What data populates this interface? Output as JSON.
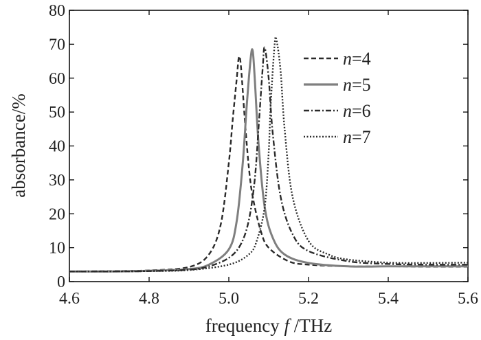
{
  "chart_data": {
    "type": "line",
    "xlabel": "frequency f /THz",
    "xlabel_parts": {
      "prefix": "frequency ",
      "italic": "f",
      "suffix": " /THz"
    },
    "ylabel": "absorbance/%",
    "xlim": [
      4.6,
      5.6
    ],
    "ylim": [
      0,
      80
    ],
    "x_ticks": [
      4.6,
      4.8,
      5.0,
      5.2,
      5.4,
      5.6
    ],
    "x_tick_labels": [
      "4.6",
      "4.8",
      "5.0",
      "5.2",
      "5.4",
      "5.6"
    ],
    "y_ticks": [
      0,
      10,
      20,
      30,
      40,
      50,
      60,
      70,
      80
    ],
    "y_tick_labels": [
      "0",
      "10",
      "20",
      "30",
      "40",
      "50",
      "60",
      "70",
      "80"
    ],
    "grid": false,
    "legend_position": "top-right",
    "series": [
      {
        "name": "n=4",
        "name_var": "n",
        "name_rest": "=4",
        "color": "#2a2a2a",
        "dash": "dashed",
        "x": [
          4.6,
          4.7,
          4.8,
          4.9,
          4.95,
          4.98,
          5.0,
          5.01,
          5.02,
          5.025,
          5.03,
          5.04,
          5.05,
          5.06,
          5.08,
          5.1,
          5.15,
          5.2,
          5.3,
          5.4,
          5.5,
          5.6
        ],
        "y": [
          3,
          3.1,
          3.3,
          4.3,
          8,
          17,
          35,
          48,
          60,
          66,
          64,
          48,
          34,
          25,
          15,
          10,
          6,
          5,
          4.5,
          4.5,
          4.4,
          4.4
        ]
      },
      {
        "name": "n=5",
        "name_var": "n",
        "name_rest": "=5",
        "color": "#7f7f7f",
        "dash": "solid",
        "x": [
          4.6,
          4.7,
          4.8,
          4.9,
          4.95,
          5.0,
          5.02,
          5.035,
          5.045,
          5.055,
          5.06,
          5.065,
          5.075,
          5.09,
          5.11,
          5.14,
          5.2,
          5.3,
          5.4,
          5.5,
          5.6
        ],
        "y": [
          3,
          3,
          3.2,
          3.7,
          5,
          9.5,
          18,
          35,
          52,
          66,
          68,
          60,
          40,
          22,
          13,
          8,
          5.5,
          4.5,
          4.5,
          4.5,
          4.5
        ]
      },
      {
        "name": "n=6",
        "name_var": "n",
        "name_rest": "=6",
        "color": "#2a2a2a",
        "dash": "dashdot",
        "x": [
          4.6,
          4.7,
          4.8,
          4.9,
          4.95,
          5.0,
          5.03,
          5.05,
          5.065,
          5.075,
          5.085,
          5.09,
          5.1,
          5.11,
          5.13,
          5.16,
          5.2,
          5.3,
          5.4,
          5.5,
          5.6
        ],
        "y": [
          3,
          3,
          3.1,
          3.5,
          4.5,
          7,
          11,
          18,
          30,
          46,
          63,
          69,
          60,
          44,
          25,
          14,
          9,
          6,
          5.2,
          5,
          5
        ]
      },
      {
        "name": "n=7",
        "name_var": "n",
        "name_rest": "=7",
        "color": "#2a2a2a",
        "dash": "dotted",
        "x": [
          4.6,
          4.7,
          4.8,
          4.9,
          5.0,
          5.05,
          5.07,
          5.09,
          5.1,
          5.105,
          5.115,
          5.12,
          5.13,
          5.14,
          5.16,
          5.2,
          5.25,
          5.3,
          5.4,
          5.5,
          5.6
        ],
        "y": [
          3,
          3,
          3.1,
          3.4,
          5,
          8,
          12,
          22,
          38,
          52,
          70,
          71,
          62,
          45,
          25,
          12,
          8,
          6.5,
          5.6,
          5.5,
          5.6
        ]
      }
    ]
  }
}
